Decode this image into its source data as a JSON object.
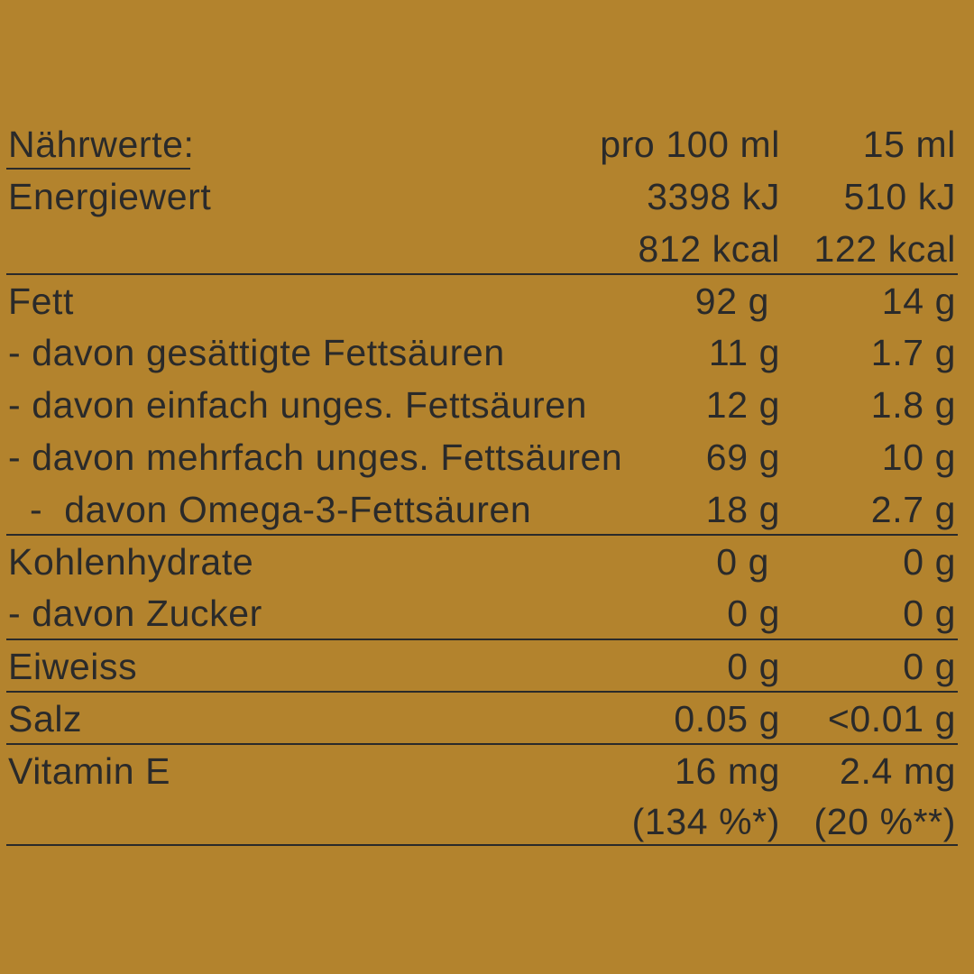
{
  "header": {
    "label": "Nährwerte:",
    "col1": "pro 100 ml",
    "col2": "15 ml"
  },
  "rows": [
    {
      "label": "Energiewert",
      "v1": "3398 kJ",
      "v2": "510 kJ",
      "sep": false
    },
    {
      "label": "",
      "v1": "812 kcal",
      "v2": "122 kcal",
      "sep": false
    },
    {
      "label": "Fett",
      "v1": "92 g ",
      "v2": "14 g",
      "sep": true
    },
    {
      "label": "- davon gesättigte Fettsäuren",
      "v1": "11 g",
      "v2": "1.7 g",
      "sep": false
    },
    {
      "label": "- davon einfach unges. Fettsäuren",
      "v1": "12 g",
      "v2": "1.8 g",
      "sep": false
    },
    {
      "label": "- davon mehrfach unges. Fettsäuren",
      "v1": "69 g",
      "v2": "10 g",
      "sep": false
    },
    {
      "label": "  -  davon Omega-3-Fettsäuren",
      "v1": "18 g",
      "v2": "2.7 g",
      "sep": false
    },
    {
      "label": "Kohlenhydrate",
      "v1": "0 g ",
      "v2": "0 g",
      "sep": true
    },
    {
      "label": "- davon Zucker",
      "v1": "0 g",
      "v2": "0 g",
      "sep": false
    },
    {
      "label": "Eiweiss",
      "v1": "0 g",
      "v2": "0 g",
      "sep": true
    },
    {
      "label": "Salz",
      "v1": "0.05 g",
      "v2": "<0.01 g",
      "sep": true
    },
    {
      "label": "Vitamin E",
      "v1": "16 mg",
      "v2": "2.4 mg",
      "sep": true
    },
    {
      "label": "",
      "v1": "(134 %*)",
      "v2": "(20 %**)",
      "sep": false
    }
  ]
}
